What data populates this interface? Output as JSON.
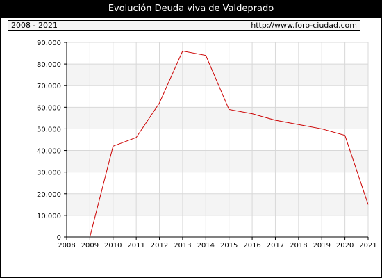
{
  "title": "Evolución Deuda viva de Valdeprado",
  "period_label": "2008 - 2021",
  "source_url": "http://www.foro-ciudad.com",
  "colors": {
    "line": "#cc0000",
    "band": "#f4f4f4",
    "grid": "#d8d8d8"
  },
  "chart_data": {
    "type": "line",
    "title": "Evolución Deuda viva de Valdeprado",
    "xlabel": "",
    "ylabel": "",
    "xlim": [
      2008,
      2021
    ],
    "ylim": [
      0,
      90000
    ],
    "grid": true,
    "x_ticks": [
      "2008",
      "2009",
      "2010",
      "2011",
      "2012",
      "2013",
      "2014",
      "2015",
      "2016",
      "2017",
      "2018",
      "2019",
      "2020",
      "2021"
    ],
    "y_ticks": [
      "0",
      "10.000",
      "20.000",
      "30.000",
      "40.000",
      "50.000",
      "60.000",
      "70.000",
      "80.000",
      "90.000"
    ],
    "series": [
      {
        "x": [
          2009,
          2010,
          2011,
          2012,
          2013,
          2014,
          2015,
          2016,
          2017,
          2018,
          2019,
          2020,
          2021
        ],
        "values": [
          0,
          42000,
          46000,
          62000,
          86000,
          84000,
          59000,
          57000,
          54000,
          52000,
          50000,
          47000,
          15000
        ]
      }
    ]
  }
}
